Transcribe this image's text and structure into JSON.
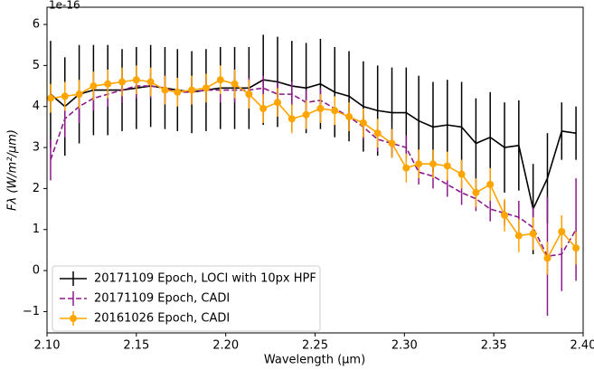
{
  "chart_data": {
    "type": "errorbar",
    "annotation": "1e-16",
    "xlabel": "Wavelength (μm)",
    "ylabel": "Fλ (W/m²/μm)",
    "xlim": [
      2.1,
      2.4
    ],
    "ylim": [
      -1.52,
      6.42
    ],
    "xticks": [
      {
        "value": 2.1,
        "label": "2.10"
      },
      {
        "value": 2.15,
        "label": "2.15"
      },
      {
        "value": 2.2,
        "label": "2.20"
      },
      {
        "value": 2.25,
        "label": "2.25"
      },
      {
        "value": 2.3,
        "label": "2.30"
      },
      {
        "value": 2.35,
        "label": "2.35"
      },
      {
        "value": 2.4,
        "label": "2.40"
      }
    ],
    "yticks": [
      {
        "value": -1,
        "label": "−1"
      },
      0,
      1,
      2,
      3,
      4,
      5,
      6
    ],
    "legend": "lower left",
    "x": [
      2.102,
      2.11,
      2.118,
      2.126,
      2.134,
      2.142,
      2.15,
      2.158,
      2.166,
      2.173,
      2.181,
      2.189,
      2.197,
      2.205,
      2.213,
      2.221,
      2.229,
      2.237,
      2.245,
      2.253,
      2.261,
      2.269,
      2.277,
      2.285,
      2.293,
      2.301,
      2.308,
      2.316,
      2.324,
      2.332,
      2.34,
      2.348,
      2.356,
      2.364,
      2.372,
      2.38,
      2.388,
      2.396
    ],
    "series": [
      {
        "name": "20171109 Epoch, LOCI with 10px HPF",
        "color": "#000000",
        "style": "solid",
        "marker": "none",
        "values": [
          4.3,
          4.0,
          4.3,
          4.4,
          4.4,
          4.4,
          4.45,
          4.5,
          4.45,
          4.4,
          4.35,
          4.4,
          4.45,
          4.45,
          4.45,
          4.65,
          4.6,
          4.5,
          4.45,
          4.55,
          4.35,
          4.25,
          4.0,
          3.9,
          3.85,
          3.85,
          3.65,
          3.5,
          3.55,
          3.5,
          3.1,
          3.25,
          3.0,
          3.05,
          1.5,
          2.25,
          3.4,
          3.35
        ],
        "errors": [
          1.3,
          1.2,
          1.2,
          1.1,
          1.1,
          1.0,
          1.0,
          1.0,
          1.0,
          1.0,
          1.0,
          1.0,
          1.0,
          1.0,
          1.0,
          1.1,
          1.1,
          1.1,
          1.1,
          1.1,
          1.1,
          1.1,
          1.1,
          1.1,
          1.1,
          1.1,
          1.1,
          1.1,
          1.1,
          1.1,
          1.1,
          1.1,
          1.1,
          1.1,
          1.1,
          1.1,
          0.7,
          0.65
        ]
      },
      {
        "name": "20171109 Epoch, CADI",
        "color": "#8b1a8b",
        "style": "dashed",
        "marker": "none",
        "values": [
          2.7,
          3.7,
          4.0,
          4.2,
          4.3,
          4.4,
          4.5,
          4.5,
          4.45,
          4.35,
          4.35,
          4.4,
          4.4,
          4.4,
          4.4,
          4.45,
          4.3,
          4.3,
          4.1,
          4.15,
          3.95,
          3.75,
          3.5,
          3.2,
          3.1,
          3.0,
          2.4,
          2.3,
          2.1,
          1.9,
          1.75,
          1.5,
          1.4,
          1.3,
          1.05,
          0.35,
          0.4,
          1.0
        ],
        "errors": [
          0.5,
          0.45,
          0.4,
          0.3,
          0.3,
          0.3,
          0.3,
          0.3,
          0.3,
          0.3,
          0.3,
          0.3,
          0.3,
          0.3,
          0.3,
          0.3,
          0.3,
          0.3,
          0.3,
          0.3,
          0.3,
          0.3,
          0.3,
          0.3,
          0.3,
          0.3,
          0.3,
          0.3,
          0.3,
          0.3,
          0.3,
          0.3,
          0.3,
          0.4,
          0.5,
          1.45,
          0.9,
          1.25
        ]
      },
      {
        "name": "20161026 Epoch, CADI",
        "color": "#ffa500",
        "style": "solid",
        "marker": "circle",
        "values": [
          4.2,
          4.25,
          4.3,
          4.5,
          4.55,
          4.6,
          4.65,
          4.6,
          4.4,
          4.35,
          4.4,
          4.45,
          4.65,
          4.55,
          4.3,
          3.95,
          4.1,
          3.7,
          3.8,
          3.95,
          3.9,
          3.75,
          3.6,
          3.35,
          3.1,
          2.5,
          2.6,
          2.6,
          2.55,
          2.35,
          1.9,
          2.1,
          1.35,
          0.85,
          0.9,
          0.3,
          0.95,
          0.55
        ],
        "errors": [
          0.35,
          0.35,
          0.35,
          0.35,
          0.35,
          0.35,
          0.35,
          0.35,
          0.35,
          0.35,
          0.35,
          0.35,
          0.35,
          0.35,
          0.35,
          0.35,
          0.35,
          0.35,
          0.35,
          0.35,
          0.35,
          0.35,
          0.35,
          0.35,
          0.35,
          0.35,
          0.35,
          0.35,
          0.35,
          0.35,
          0.35,
          0.4,
          0.4,
          0.4,
          0.4,
          0.4,
          0.4,
          0.4
        ]
      }
    ]
  }
}
